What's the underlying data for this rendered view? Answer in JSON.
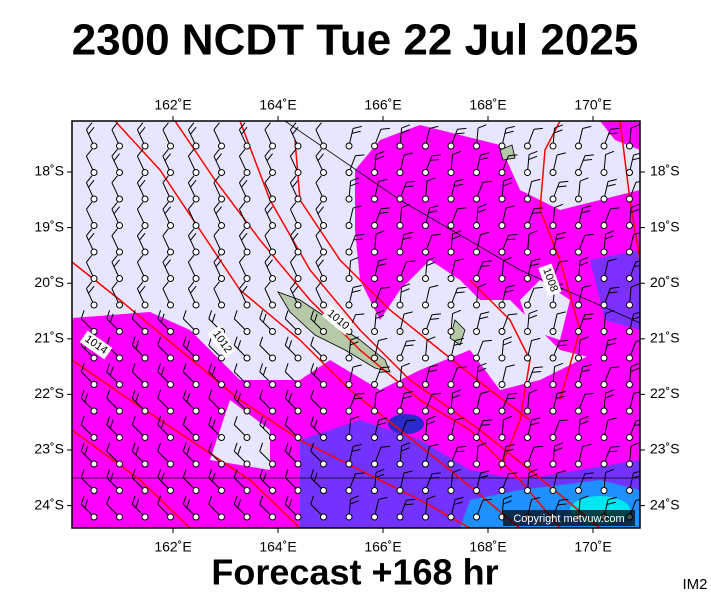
{
  "header": {
    "title": "2300 NCDT Tue 22 Jul 2025"
  },
  "map": {
    "lon_ticks": [
      {
        "value": 162,
        "label": "162˚E"
      },
      {
        "value": 164,
        "label": "164˚E"
      },
      {
        "value": 166,
        "label": "166˚E"
      },
      {
        "value": 168,
        "label": "168˚E"
      },
      {
        "value": 170,
        "label": "170˚E"
      }
    ],
    "lat_ticks": [
      {
        "value": 18,
        "label": "18˚S"
      },
      {
        "value": 19,
        "label": "19˚S"
      },
      {
        "value": 20,
        "label": "20˚S"
      },
      {
        "value": 21,
        "label": "21˚S"
      },
      {
        "value": 22,
        "label": "22˚S"
      },
      {
        "value": 23,
        "label": "23˚S"
      },
      {
        "value": 24,
        "label": "24˚S"
      }
    ],
    "isobar_labels": [
      "1014",
      "1012",
      "1010",
      "1008"
    ],
    "copyright": "Copyright metvuw.com"
  },
  "footer": {
    "forecast": "Forecast +168 hr",
    "code": "IM2"
  }
}
